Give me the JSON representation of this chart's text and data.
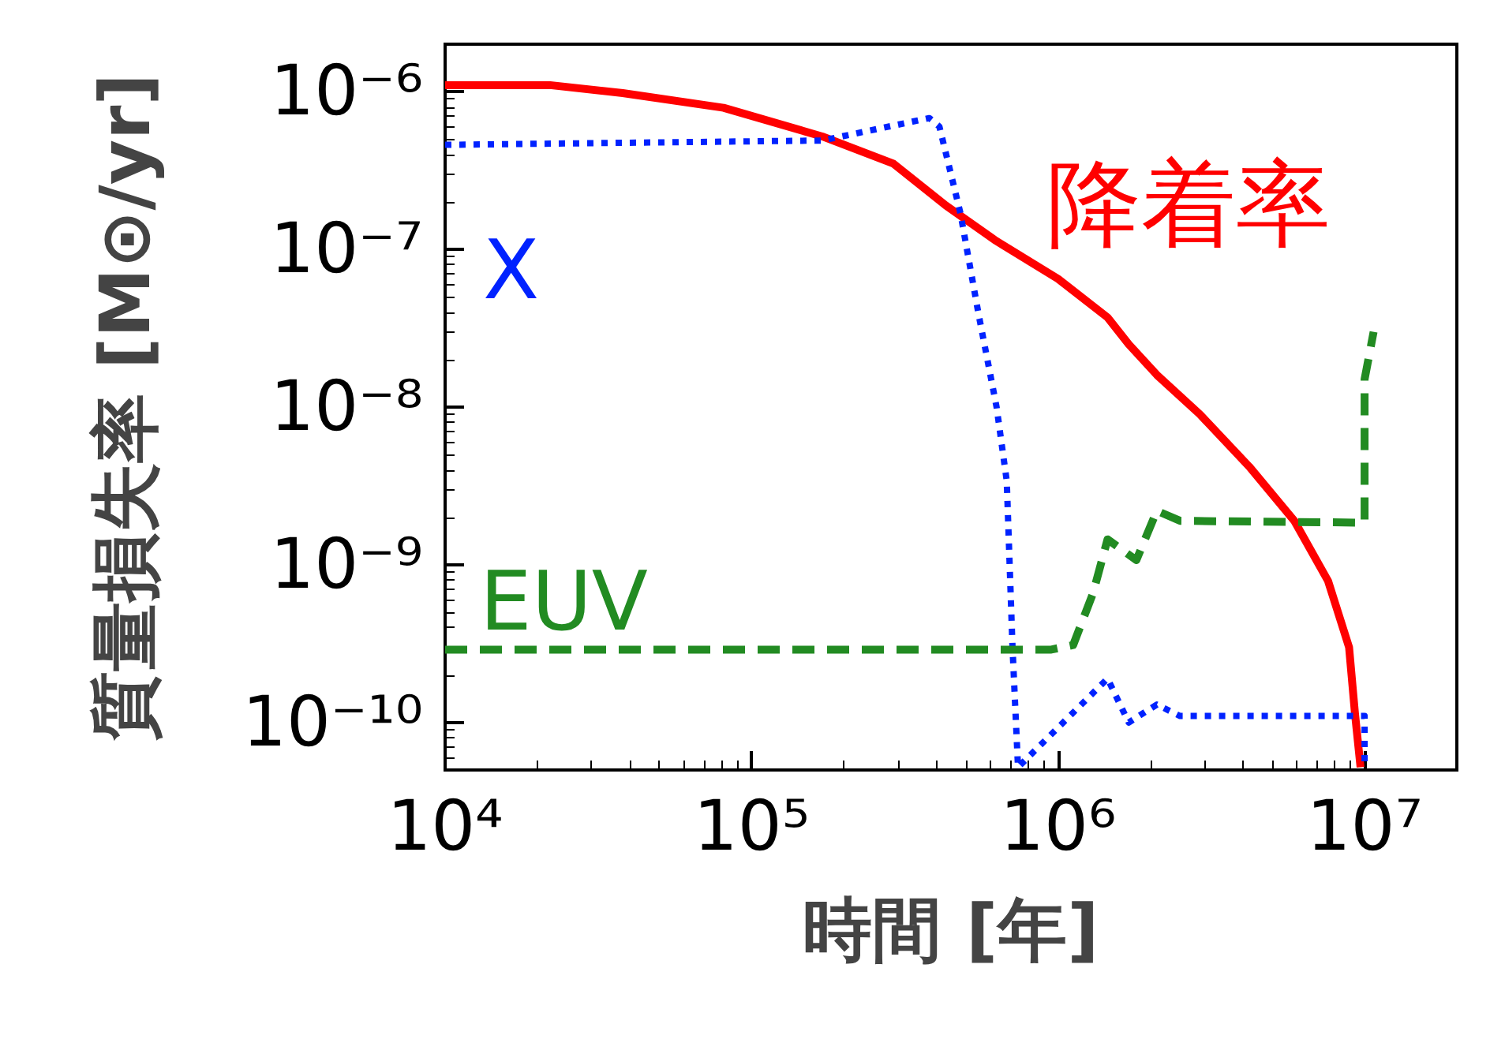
{
  "chart_data": {
    "type": "line",
    "xlabel": "時間 [年]",
    "ylabel": "質量損失率 [M⊙/yr]",
    "log": "xy",
    "grid": false,
    "legend": false,
    "marker": "none",
    "xlim": [
      10000,
      20000000
    ],
    "ylim": [
      5e-11,
      2e-06
    ],
    "xticks": [
      {
        "value": 10000,
        "label": "10⁴"
      },
      {
        "value": 100000,
        "label": "10⁵"
      },
      {
        "value": 1000000,
        "label": "10⁶"
      },
      {
        "value": 10000000,
        "label": "10⁷"
      }
    ],
    "yticks": [
      {
        "value": 1e-10,
        "label": "10⁻¹⁰"
      },
      {
        "value": 1e-09,
        "label": "10⁻⁹"
      },
      {
        "value": 1e-08,
        "label": "10⁻⁸"
      },
      {
        "value": 1e-07,
        "label": "10⁻⁷"
      },
      {
        "value": 1e-06,
        "label": "10⁻⁶"
      }
    ],
    "series": [
      {
        "name": "降着率",
        "color": "#ff0000",
        "line_style": "solid",
        "x": [
          10000,
          22000,
          38000,
          81000,
          170000,
          290000,
          430000,
          620000,
          1000000,
          1450000,
          1700000,
          2100000,
          2900000,
          4200000,
          5900000,
          7600000,
          8900000,
          9300000,
          9700000
        ],
        "values": [
          1.1e-06,
          1.1e-06,
          9.8e-07,
          7.9e-07,
          5.2e-07,
          3.5e-07,
          1.9e-07,
          1.15e-07,
          6.5e-08,
          3.7e-08,
          2.5e-08,
          1.6e-08,
          9e-09,
          4.2e-09,
          1.9e-09,
          7.9e-10,
          3e-10,
          1.15e-10,
          5.2e-11
        ]
      },
      {
        "name": "X",
        "color": "#0022ff",
        "line_style": "dotted",
        "x": [
          10000,
          170000,
          380000,
          410000,
          480000,
          550000,
          630000,
          680000,
          710000,
          740000,
          1450000,
          1700000,
          2100000,
          2500000,
          10000000,
          10000000
        ],
        "values": [
          4.6e-07,
          4.9e-07,
          6.8e-07,
          6e-07,
          1.7e-07,
          3.9e-08,
          1e-08,
          3.4e-09,
          3e-10,
          5.2e-11,
          1.9e-10,
          1e-10,
          1.3e-10,
          1.1e-10,
          1.1e-10,
          5.2e-11
        ]
      },
      {
        "name": "EUV",
        "color": "#228b22",
        "line_style": "dashed",
        "x": [
          10000,
          950000,
          1120000,
          1300000,
          1450000,
          1800000,
          2100000,
          2500000,
          10000000,
          10000000,
          10700000
        ],
        "values": [
          2.9e-10,
          2.9e-10,
          3.1e-10,
          6.6e-10,
          1.45e-09,
          1.07e-09,
          2.2e-09,
          1.9e-09,
          1.85e-09,
          1.5e-08,
          3e-08
        ]
      }
    ]
  }
}
